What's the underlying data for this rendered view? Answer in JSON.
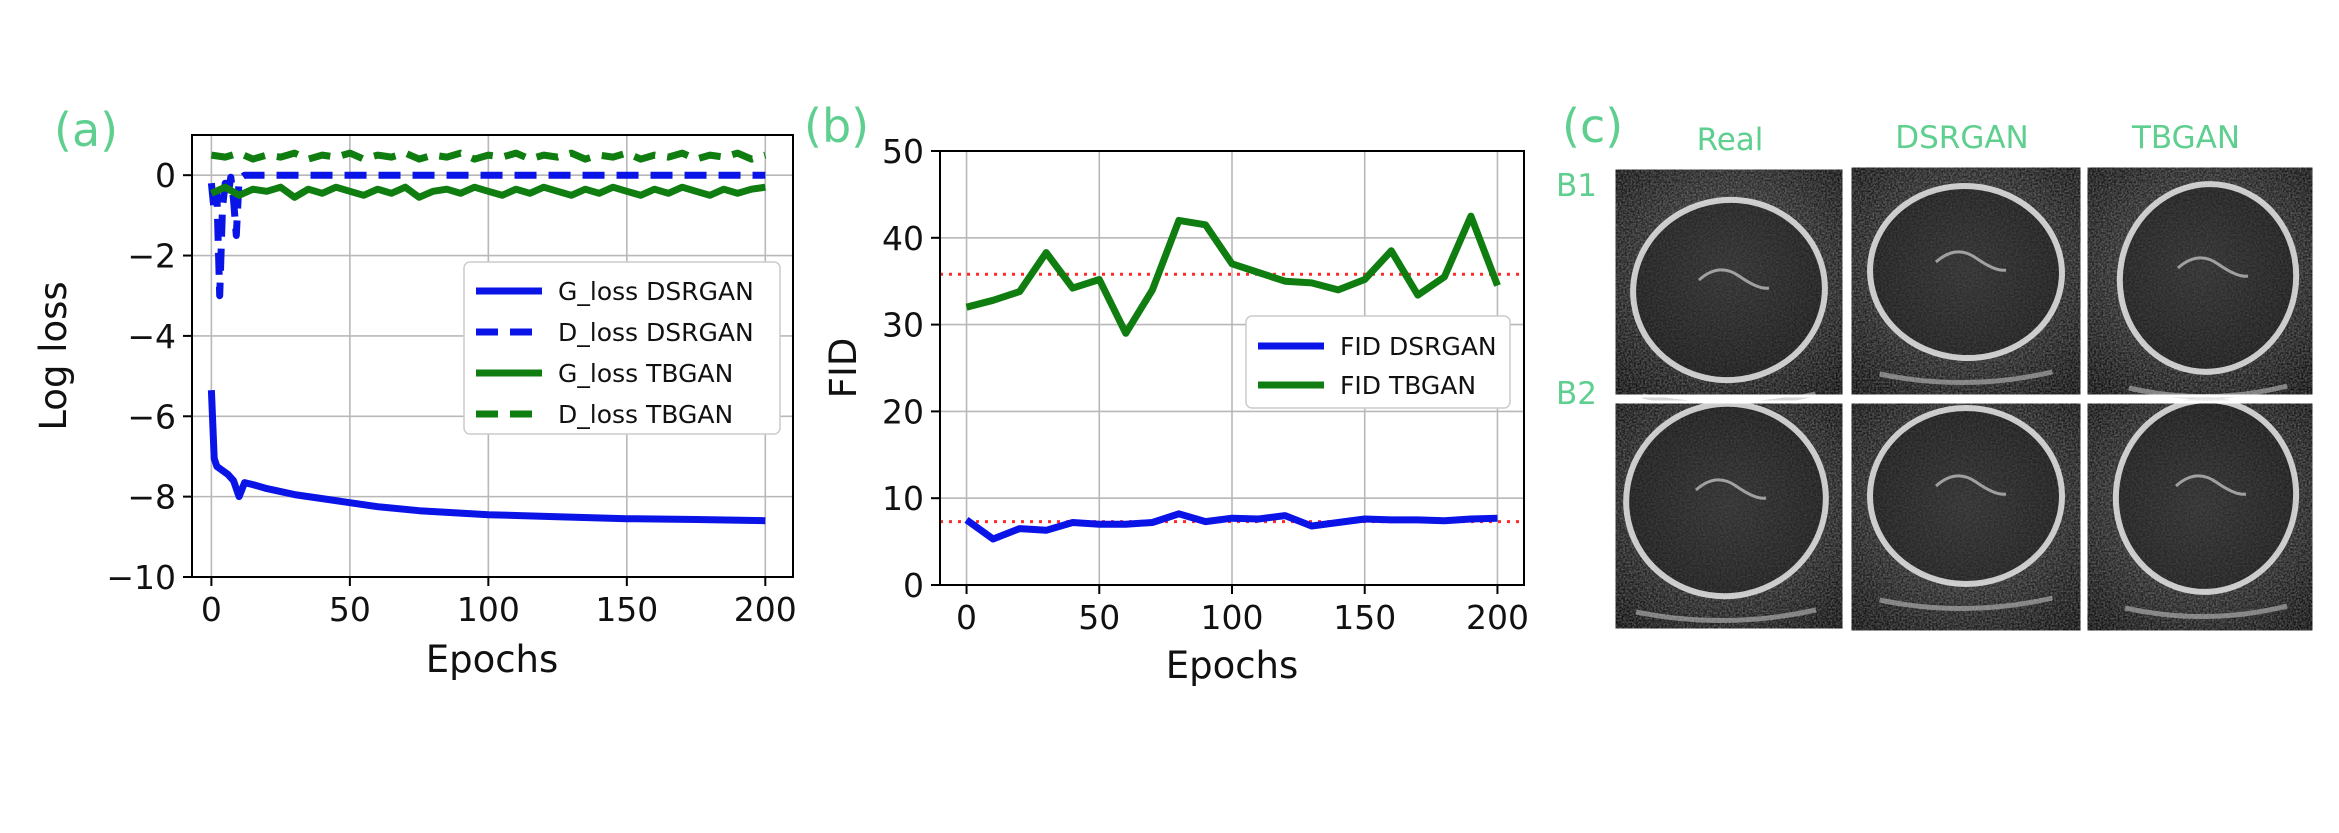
{
  "panel_letters": [
    "(a)",
    "(b)",
    "(c)"
  ],
  "colors": {
    "dsrgan": "#0a14e6",
    "tbgan": "#0f7d0f",
    "threshold": "#ff2a2a",
    "annotation": "#5fcf8f"
  },
  "chart_data": [
    {
      "type": "line",
      "xlabel": "Epochs",
      "ylabel": "Log loss",
      "xlim": [
        -7,
        210
      ],
      "ylim": [
        -10,
        1
      ],
      "xticks": [
        0,
        50,
        100,
        150,
        200
      ],
      "yticks": [
        -10,
        -8,
        -6,
        -4,
        -2,
        0
      ],
      "grid": true,
      "legend": "center-right",
      "series": [
        {
          "name": "G_loss DSRGAN",
          "color": "dsrgan",
          "style": "solid",
          "x": [
            0,
            1,
            2,
            4,
            6,
            8,
            10,
            12,
            15,
            20,
            30,
            40,
            50,
            60,
            75,
            100,
            125,
            150,
            175,
            200
          ],
          "y": [
            -5.35,
            -7.05,
            -7.25,
            -7.35,
            -7.45,
            -7.6,
            -8.0,
            -7.65,
            -7.7,
            -7.8,
            -7.95,
            -8.05,
            -8.15,
            -8.25,
            -8.35,
            -8.45,
            -8.5,
            -8.55,
            -8.57,
            -8.6
          ]
        },
        {
          "name": "D_loss DSRGAN",
          "color": "dsrgan",
          "style": "dashed",
          "x": [
            0,
            1,
            2,
            3,
            4,
            5,
            6,
            7,
            8,
            9,
            10,
            12,
            15,
            200
          ],
          "y": [
            -0.2,
            -0.9,
            -0.5,
            -3.0,
            -0.8,
            -0.2,
            -0.5,
            -0.05,
            -0.6,
            -1.5,
            -0.1,
            0,
            0,
            0
          ]
        },
        {
          "name": "G_loss TBGAN",
          "color": "tbgan",
          "style": "solid",
          "x": [
            0,
            5,
            10,
            15,
            20,
            25,
            30,
            35,
            40,
            45,
            50,
            55,
            60,
            65,
            70,
            75,
            80,
            85,
            90,
            95,
            100,
            105,
            110,
            115,
            120,
            125,
            130,
            135,
            140,
            145,
            150,
            155,
            160,
            165,
            170,
            175,
            180,
            185,
            190,
            195,
            200
          ],
          "y": [
            -0.45,
            -0.3,
            -0.5,
            -0.35,
            -0.4,
            -0.3,
            -0.55,
            -0.35,
            -0.45,
            -0.3,
            -0.4,
            -0.5,
            -0.35,
            -0.45,
            -0.3,
            -0.55,
            -0.4,
            -0.35,
            -0.45,
            -0.3,
            -0.4,
            -0.5,
            -0.35,
            -0.45,
            -0.3,
            -0.4,
            -0.5,
            -0.35,
            -0.45,
            -0.3,
            -0.4,
            -0.5,
            -0.35,
            -0.45,
            -0.3,
            -0.4,
            -0.5,
            -0.35,
            -0.45,
            -0.35,
            -0.3
          ]
        },
        {
          "name": "D_loss TBGAN",
          "color": "tbgan",
          "style": "dashed",
          "x": [
            0,
            5,
            10,
            15,
            20,
            25,
            30,
            35,
            40,
            45,
            50,
            55,
            60,
            65,
            70,
            75,
            80,
            85,
            90,
            95,
            100,
            105,
            110,
            115,
            120,
            125,
            130,
            135,
            140,
            145,
            150,
            155,
            160,
            165,
            170,
            175,
            180,
            185,
            190,
            195,
            200
          ],
          "y": [
            0.5,
            0.45,
            0.55,
            0.4,
            0.5,
            0.45,
            0.55,
            0.4,
            0.5,
            0.45,
            0.55,
            0.4,
            0.5,
            0.45,
            0.55,
            0.4,
            0.5,
            0.45,
            0.55,
            0.4,
            0.5,
            0.45,
            0.55,
            0.4,
            0.5,
            0.45,
            0.55,
            0.4,
            0.5,
            0.45,
            0.55,
            0.4,
            0.5,
            0.45,
            0.55,
            0.4,
            0.5,
            0.45,
            0.55,
            0.4,
            0.5
          ]
        }
      ]
    },
    {
      "type": "line",
      "xlabel": "Epochs",
      "ylabel": "FID",
      "xlim": [
        -10,
        210
      ],
      "ylim": [
        0,
        50
      ],
      "xticks": [
        0,
        50,
        100,
        150,
        200
      ],
      "yticks": [
        0,
        10,
        20,
        30,
        40,
        50
      ],
      "grid": true,
      "legend": "center-right",
      "reference_lines": [
        35.8,
        7.3
      ],
      "series": [
        {
          "name": "FID DSRGAN",
          "color": "dsrgan",
          "style": "solid",
          "x": [
            0,
            10,
            20,
            30,
            40,
            50,
            60,
            70,
            80,
            90,
            100,
            110,
            120,
            130,
            140,
            150,
            160,
            170,
            180,
            190,
            200
          ],
          "y": [
            7.5,
            5.3,
            6.5,
            6.3,
            7.2,
            7.0,
            7.0,
            7.2,
            8.2,
            7.3,
            7.7,
            7.6,
            8.0,
            6.8,
            7.2,
            7.6,
            7.5,
            7.5,
            7.4,
            7.6,
            7.7
          ]
        },
        {
          "name": "FID TBGAN",
          "color": "tbgan",
          "style": "solid",
          "x": [
            0,
            10,
            20,
            30,
            40,
            50,
            60,
            70,
            80,
            90,
            100,
            110,
            120,
            130,
            140,
            150,
            160,
            170,
            180,
            190,
            200
          ],
          "y": [
            32.0,
            32.8,
            33.8,
            38.3,
            34.2,
            35.2,
            29.0,
            34.0,
            42.0,
            41.5,
            37.0,
            36.0,
            35.0,
            34.8,
            34.0,
            35.2,
            38.5,
            33.4,
            35.5,
            42.5,
            34.5
          ]
        }
      ]
    }
  ],
  "image_grid": {
    "columns": [
      "Real",
      "DSRGAN",
      "TBGAN"
    ],
    "rows": [
      "B1",
      "B2"
    ]
  }
}
